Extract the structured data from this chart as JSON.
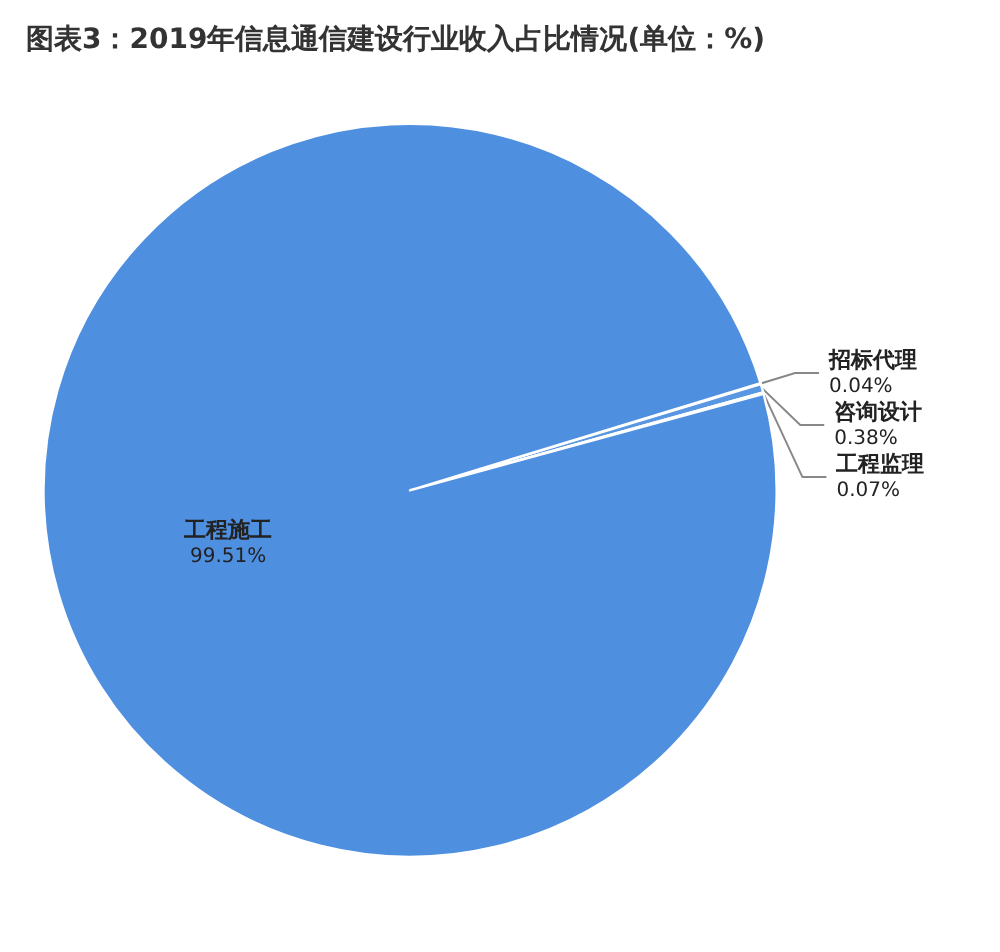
{
  "chart_data": {
    "type": "pie",
    "title": "图表3：2019年信息通信建设行业收入占比情况(单位：%)",
    "categories": [
      "招标代理",
      "咨询设计",
      "工程监理",
      "工程施工"
    ],
    "values": [
      0.04,
      0.38,
      0.07,
      99.51
    ],
    "colors": [
      "#4a89d9",
      "#5a97e3",
      "#4685d6",
      "#4f8fe0"
    ],
    "value_labels": [
      "0.04%",
      "0.38%",
      "0.07%",
      "99.51%"
    ],
    "legend": false
  }
}
